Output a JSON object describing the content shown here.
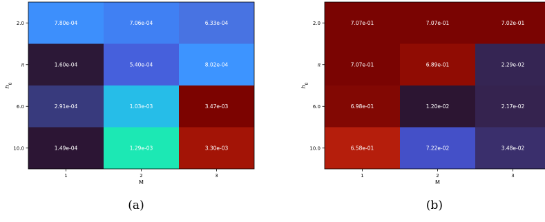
{
  "chart_data": [
    {
      "type": "heatmap",
      "xlabel": "M",
      "ylabel": "h0",
      "x_categories": [
        "1",
        "2",
        "3"
      ],
      "y_categories": [
        "2.0",
        "π",
        "6.0",
        "10.0"
      ],
      "cells": [
        [
          {
            "label": "7.80e-04",
            "color": "#3d8ffc"
          },
          {
            "label": "7.06e-04",
            "color": "#4080f3"
          },
          {
            "label": "6.33e-04",
            "color": "#4873e2"
          }
        ],
        [
          {
            "label": "1.60e-04",
            "color": "#2c1837"
          },
          {
            "label": "5.40e-04",
            "color": "#4660dc"
          },
          {
            "label": "8.02e-04",
            "color": "#3d94ff"
          }
        ],
        [
          {
            "label": "2.91e-04",
            "color": "#383a7d"
          },
          {
            "label": "1.03e-03",
            "color": "#26bde8"
          },
          {
            "label": "3.47e-03",
            "color": "#7c0300"
          }
        ],
        [
          {
            "label": "1.49e-04",
            "color": "#2c1534"
          },
          {
            "label": "1.29e-03",
            "color": "#1ce8b4"
          },
          {
            "label": "3.30e-03",
            "color": "#a31406"
          }
        ]
      ],
      "caption": "(a)"
    },
    {
      "type": "heatmap",
      "xlabel": "M",
      "ylabel": "h0",
      "x_categories": [
        "1",
        "2",
        "3"
      ],
      "y_categories": [
        "2.0",
        "π",
        "6.0",
        "10.0"
      ],
      "cells": [
        [
          {
            "label": "7.07e-01",
            "color": "#7a0402"
          },
          {
            "label": "7.07e-01",
            "color": "#7a0402"
          },
          {
            "label": "7.02e-01",
            "color": "#7a0402"
          }
        ],
        [
          {
            "label": "7.07e-01",
            "color": "#7a0402"
          },
          {
            "label": "6.89e-01",
            "color": "#900c03"
          },
          {
            "label": "2.29e-02",
            "color": "#352553"
          }
        ],
        [
          {
            "label": "6.98e-01",
            "color": "#820803"
          },
          {
            "label": "1.20e-02",
            "color": "#2c1532"
          },
          {
            "label": "2.17e-02",
            "color": "#35234f"
          }
        ],
        [
          {
            "label": "6.58e-01",
            "color": "#b51e0c"
          },
          {
            "label": "7.22e-02",
            "color": "#4450c8"
          },
          {
            "label": "3.48e-02",
            "color": "#3a2f6c"
          }
        ]
      ],
      "caption": "(b)"
    }
  ]
}
